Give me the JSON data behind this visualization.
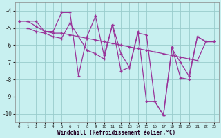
{
  "xlabel": "Windchill (Refroidissement éolien,°C)",
  "x_ticks": [
    0,
    1,
    2,
    3,
    4,
    5,
    6,
    7,
    8,
    9,
    10,
    11,
    12,
    13,
    14,
    15,
    16,
    17,
    18,
    19,
    20,
    21,
    22,
    23
  ],
  "ylim": [
    -10.5,
    -3.5
  ],
  "xlim": [
    -0.5,
    23.5
  ],
  "y_ticks": [
    -10,
    -9,
    -8,
    -7,
    -6,
    -5,
    -4
  ],
  "background_color": "#c8f0f0",
  "grid_color": "#99cccc",
  "line_color": "#993399",
  "line1_x": [
    0,
    1,
    2,
    3,
    4,
    5,
    6,
    7,
    8,
    9,
    10,
    11,
    12,
    13,
    14,
    15,
    16,
    17,
    18,
    19,
    20,
    21,
    22,
    23
  ],
  "line1_y": [
    -4.6,
    -4.6,
    -4.6,
    -5.2,
    -5.2,
    -4.1,
    -4.1,
    -7.8,
    -5.5,
    -4.3,
    -6.6,
    -4.8,
    -7.5,
    -7.3,
    -5.2,
    -9.3,
    -9.3,
    -10.1,
    -6.1,
    -7.9,
    -8.0,
    -5.5,
    -5.8,
    -5.8
  ],
  "line2_x": [
    0,
    1,
    2,
    3,
    4,
    5,
    6,
    7,
    8,
    9,
    10,
    11,
    12,
    13,
    14,
    15,
    16,
    17,
    18,
    19,
    20,
    21,
    22,
    23
  ],
  "line2_y": [
    -4.6,
    -4.6,
    -4.9,
    -5.2,
    -5.3,
    -5.3,
    -5.4,
    -5.5,
    -5.6,
    -5.7,
    -5.8,
    -5.9,
    -6.0,
    -6.1,
    -6.2,
    -6.3,
    -6.4,
    -6.5,
    -6.6,
    -6.7,
    -6.8,
    -6.9,
    -5.8,
    -5.8
  ],
  "line3_x": [
    1,
    2,
    3,
    4,
    5,
    6,
    7,
    8,
    9,
    10,
    11,
    12,
    13,
    14,
    15,
    16,
    17,
    18,
    19,
    20,
    21,
    22,
    23
  ],
  "line3_y": [
    -5.0,
    -5.2,
    -5.3,
    -5.5,
    -5.6,
    -4.7,
    -5.5,
    -6.3,
    -6.5,
    -6.8,
    -4.8,
    -6.5,
    -7.3,
    -5.3,
    -5.4,
    -9.3,
    -10.1,
    -6.2,
    -7.0,
    -7.8,
    -5.5,
    -5.8,
    -5.8
  ]
}
